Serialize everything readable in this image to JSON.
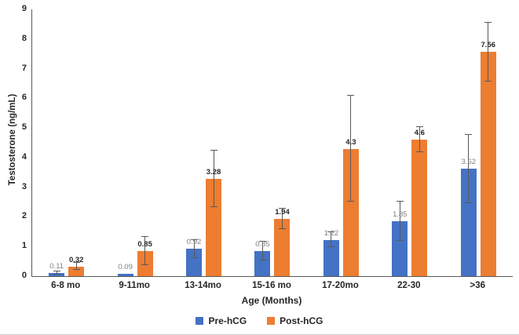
{
  "chart_data": {
    "type": "bar",
    "title": "",
    "xlabel": "Age (Months)",
    "ylabel": "Testosterone (ng/mL)",
    "categories": [
      "6-8 mo",
      "9-11mo",
      "13-14mo",
      "15-16 mo",
      "17-20mo",
      "22-30",
      ">36"
    ],
    "series": [
      {
        "name": "Pre-hCG",
        "color": "#4472C4",
        "label_color": "#7f7f7f",
        "label_bold": false,
        "values": [
          0.11,
          0.09,
          0.92,
          0.85,
          1.22,
          1.85,
          3.62
        ],
        "labels": [
          "0.11",
          "0.09",
          "0.92",
          "0.85",
          "1.22",
          "1.85",
          "3.62"
        ],
        "errors": [
          0.05,
          0,
          0.3,
          0.32,
          0.25,
          0.67,
          1.15
        ]
      },
      {
        "name": "Post-hCG",
        "color": "#ED7D31",
        "label_color": "#262626",
        "label_bold": true,
        "values": [
          0.32,
          0.85,
          3.28,
          1.94,
          4.3,
          4.6,
          7.56
        ],
        "labels": [
          "0.32",
          "0.85",
          "3.28",
          "1.94",
          "4.3",
          "4.6",
          "7.56"
        ],
        "errors": [
          0.12,
          0.48,
          0.95,
          0.34,
          1.78,
          0.42,
          1.0
        ]
      }
    ],
    "ylim": [
      0,
      9
    ],
    "yticks": [
      0,
      1,
      2,
      3,
      4,
      5,
      6,
      7,
      8,
      9
    ],
    "grid": false,
    "legend_position": "bottom",
    "error_bar_color": "#595959",
    "axis_color": "#595959"
  }
}
